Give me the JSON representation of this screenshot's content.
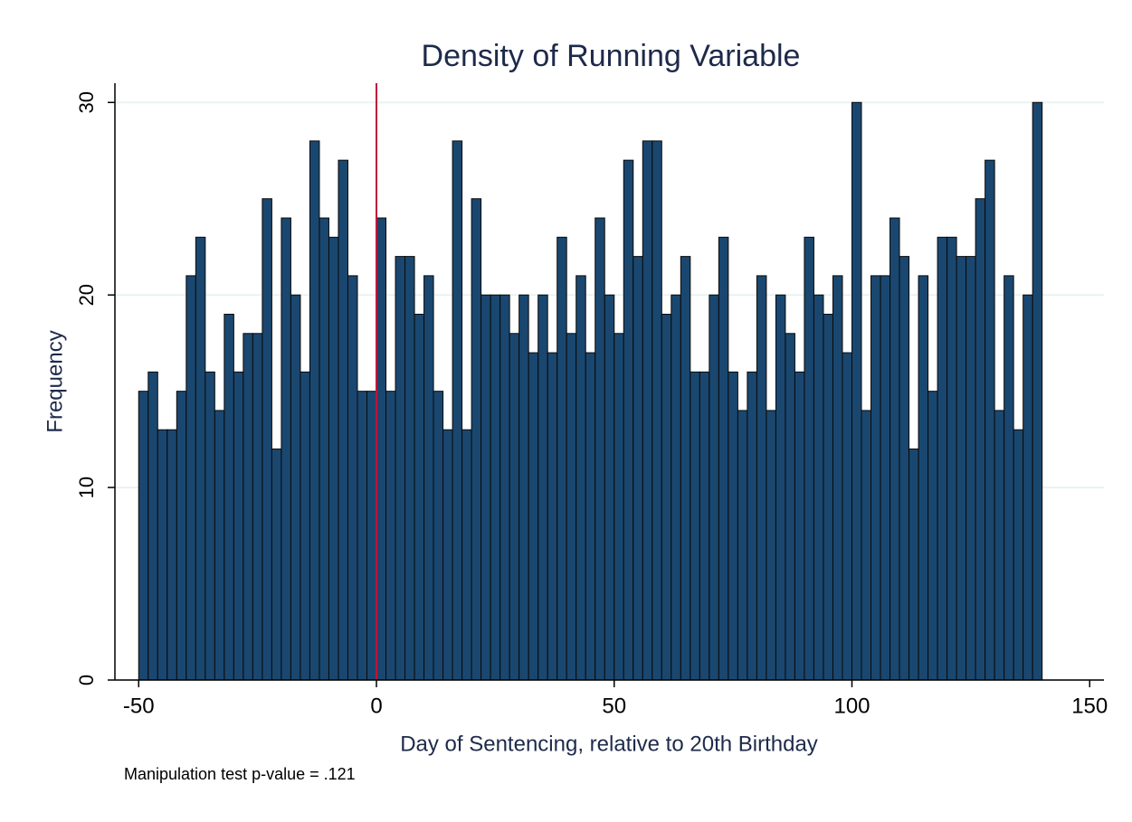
{
  "chart_data": {
    "type": "histogram",
    "title": "Density of Running Variable",
    "x_label": "Day of Sentencing, relative to 20th Birthday",
    "y_label": "Frequency",
    "note": "Manipulation test p-value = .121",
    "bins": [
      -50,
      -48,
      -46,
      -44,
      -42,
      -40,
      -38,
      -36,
      -34,
      -32,
      -30,
      -28,
      -26,
      -24,
      -22,
      -20,
      -18,
      -16,
      -14,
      -12,
      -10,
      -8,
      -6,
      -4,
      -2,
      0,
      2,
      4,
      6,
      8,
      10,
      12,
      14,
      16,
      18,
      20,
      22,
      24,
      26,
      28,
      30,
      32,
      34,
      36,
      38,
      40,
      42,
      44,
      46,
      48,
      50,
      52,
      54,
      56,
      58,
      60,
      62,
      64,
      66,
      68,
      70,
      72,
      74,
      76,
      78,
      80,
      82,
      84,
      86,
      88,
      90,
      92,
      94,
      96,
      98,
      100,
      102,
      104,
      106,
      108,
      110,
      112,
      114,
      116,
      118,
      120,
      122,
      124,
      126,
      128,
      130,
      132,
      134,
      136,
      138,
      140
    ],
    "values": [
      15,
      16,
      13,
      13,
      15,
      21,
      23,
      16,
      14,
      19,
      16,
      18,
      18,
      25,
      12,
      24,
      20,
      16,
      28,
      24,
      23,
      27,
      21,
      15,
      15,
      24,
      15,
      22,
      22,
      19,
      21,
      15,
      13,
      28,
      13,
      25,
      20,
      20,
      20,
      18,
      20,
      17,
      20,
      17,
      23,
      18,
      21,
      17,
      24,
      20,
      18,
      27,
      22,
      28,
      28,
      19,
      20,
      22,
      16,
      16,
      20,
      23,
      16,
      14,
      16,
      21,
      14,
      20,
      18,
      16,
      23,
      20,
      19,
      21,
      17,
      30,
      14,
      21,
      21,
      24,
      22,
      12,
      21,
      15,
      23,
      23,
      22,
      22,
      25,
      27,
      14,
      21,
      13,
      20,
      30
    ],
    "color": "#1a476f",
    "reference_line": {
      "x": 0,
      "color": "#c0143c"
    },
    "xlim": [
      -55,
      153
    ],
    "xticks": [
      -50,
      0,
      50,
      100,
      150
    ],
    "ylim": [
      0,
      31
    ],
    "yticks": [
      0,
      10,
      20,
      30
    ],
    "grid": true
  }
}
